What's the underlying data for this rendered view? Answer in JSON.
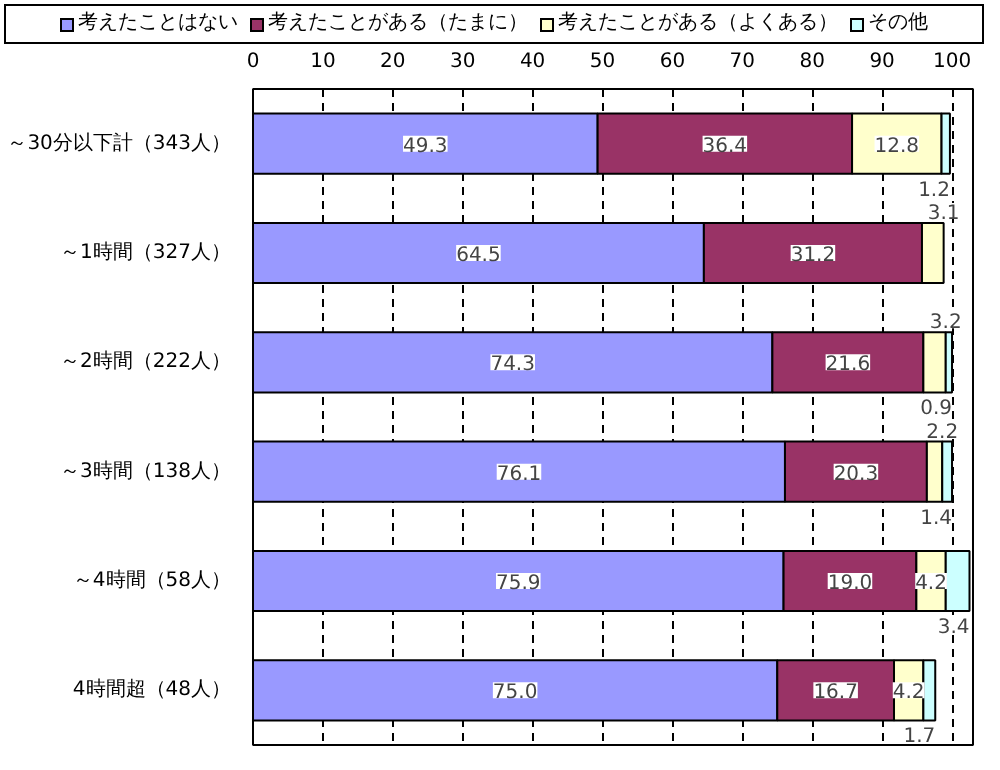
{
  "chart_data": {
    "type": "bar",
    "orientation": "horizontal",
    "stacked": true,
    "categories": [
      "～30分以下計（343人）",
      "～1時間（327人）",
      "～2時間（222人）",
      "～3時間（138人）",
      "～4時間（58人）",
      "4時間超（48人）"
    ],
    "series": [
      {
        "name": "考えたことはない",
        "color": "#9999ff",
        "values": [
          49.3,
          64.5,
          74.3,
          76.1,
          75.9,
          75.0
        ],
        "value_labels": [
          "49.3",
          "64.5",
          "74.3",
          "76.1",
          "75.9",
          "75.0"
        ]
      },
      {
        "name": "考えたことがある（たまに）",
        "color": "#993366",
        "values": [
          36.4,
          31.2,
          21.6,
          20.3,
          19.0,
          16.7
        ],
        "value_labels": [
          "36.4",
          "31.2",
          "21.6",
          "20.3",
          "19.0",
          "16.7"
        ]
      },
      {
        "name": "考えたことがある（よくある）",
        "color": "#ffffcc",
        "values": [
          12.8,
          3.1,
          3.2,
          2.2,
          4.2,
          4.2
        ],
        "value_labels": [
          "12.8",
          "3.1",
          "3.2",
          "2.2",
          "4.2",
          "4.2"
        ]
      },
      {
        "name": "その他",
        "color": "#ccffff",
        "values": [
          1.2,
          null,
          0.9,
          1.4,
          3.4,
          1.7
        ],
        "value_labels": [
          "1.2",
          null,
          "0.9",
          "1.4",
          "3.4",
          "1.7"
        ]
      }
    ],
    "xlim": [
      0,
      103
    ],
    "xticks": [
      0,
      10,
      20,
      30,
      40,
      50,
      60,
      70,
      80,
      90,
      100
    ],
    "grid": "x",
    "legend": "top"
  }
}
